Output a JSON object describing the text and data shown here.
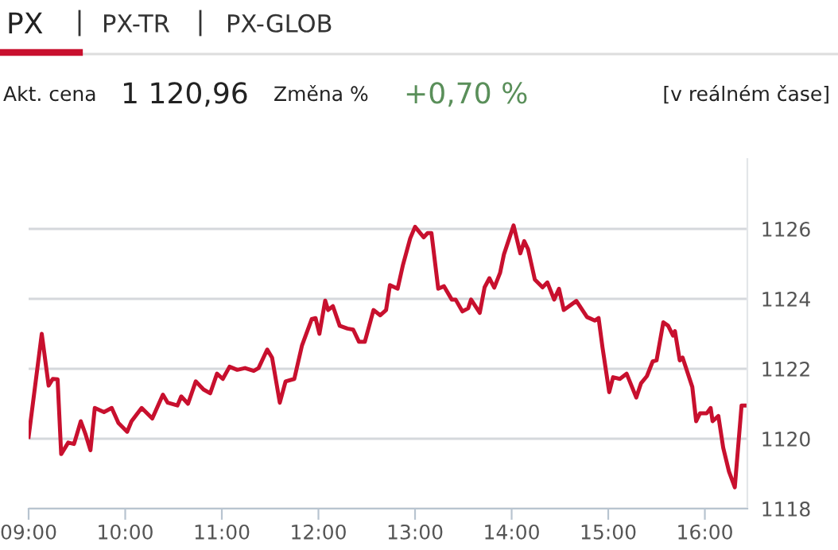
{
  "chart_data": {
    "type": "line",
    "annotations": [
      "PX",
      "PX-TR",
      "PX-GLOB",
      "Akt. cena",
      "1 120,96",
      "Změna %",
      "+0,70 %",
      "[v reálném čase]"
    ],
    "x": [
      9.0,
      9.136,
      9.207,
      9.25,
      9.3,
      9.337,
      9.41,
      9.47,
      9.54,
      9.59,
      9.64,
      9.685,
      9.78,
      9.86,
      9.93,
      10.02,
      10.065,
      10.17,
      10.28,
      10.39,
      10.44,
      10.54,
      10.58,
      10.65,
      10.73,
      10.81,
      10.88,
      10.95,
      11.01,
      11.08,
      11.16,
      11.24,
      11.33,
      11.38,
      11.47,
      11.52,
      11.6,
      11.66,
      11.75,
      11.83,
      11.93,
      11.97,
      12.01,
      12.07,
      12.1,
      12.15,
      12.22,
      12.3,
      12.36,
      12.42,
      12.48,
      12.57,
      12.64,
      12.7,
      12.74,
      12.82,
      12.875,
      12.95,
      13.0,
      13.09,
      13.13,
      13.17,
      13.24,
      13.3,
      13.38,
      13.42,
      13.49,
      13.55,
      13.58,
      13.67,
      13.72,
      13.77,
      13.82,
      13.88,
      13.92,
      14.02,
      14.09,
      14.13,
      14.17,
      14.24,
      14.32,
      14.37,
      14.44,
      14.49,
      14.54,
      14.67,
      14.78,
      14.86,
      14.9,
      14.94,
      15.01,
      15.05,
      15.12,
      15.19,
      15.29,
      15.34,
      15.4,
      15.46,
      15.5,
      15.57,
      15.62,
      15.67,
      15.69,
      15.74,
      15.77,
      15.87,
      15.91,
      15.95,
      16.02,
      16.06,
      16.08,
      16.14,
      16.19,
      16.25,
      16.31,
      16.38,
      16.44
    ],
    "series": [
      {
        "color": "#c8102e",
        "values": [
          1120.05,
          1123.0,
          1121.52,
          1121.71,
          1121.7,
          1119.56,
          1119.89,
          1119.85,
          1120.5,
          1120.12,
          1119.67,
          1120.88,
          1120.76,
          1120.88,
          1120.45,
          1120.2,
          1120.5,
          1120.88,
          1120.58,
          1121.26,
          1121.03,
          1120.95,
          1121.21,
          1121.0,
          1121.64,
          1121.41,
          1121.3,
          1121.86,
          1121.71,
          1122.06,
          1121.97,
          1122.02,
          1121.94,
          1122.02,
          1122.55,
          1122.32,
          1121.03,
          1121.64,
          1121.71,
          1122.67,
          1123.42,
          1123.45,
          1123.0,
          1123.95,
          1123.68,
          1123.79,
          1123.23,
          1123.15,
          1123.12,
          1122.77,
          1122.77,
          1123.68,
          1123.53,
          1123.68,
          1124.39,
          1124.29,
          1124.97,
          1125.73,
          1126.06,
          1125.76,
          1125.88,
          1125.88,
          1124.29,
          1124.36,
          1123.98,
          1123.98,
          1123.64,
          1123.73,
          1123.98,
          1123.6,
          1124.33,
          1124.59,
          1124.32,
          1124.74,
          1125.27,
          1126.1,
          1125.3,
          1125.65,
          1125.42,
          1124.55,
          1124.33,
          1124.47,
          1123.98,
          1124.29,
          1123.68,
          1123.94,
          1123.48,
          1123.38,
          1123.45,
          1122.62,
          1121.33,
          1121.76,
          1121.71,
          1121.86,
          1121.18,
          1121.59,
          1121.79,
          1122.21,
          1122.24,
          1123.33,
          1123.23,
          1122.95,
          1123.08,
          1122.24,
          1122.32,
          1121.48,
          1120.5,
          1120.73,
          1120.73,
          1120.88,
          1120.5,
          1120.65,
          1119.74,
          1119.06,
          1118.61,
          1120.95,
          1120.95
        ]
      }
    ],
    "xlim": [
      9,
      16.44
    ],
    "xticks": [
      {
        "value": 9,
        "label": "09:00"
      },
      {
        "value": 10,
        "label": "10:00"
      },
      {
        "value": 11,
        "label": "11:00"
      },
      {
        "value": 12,
        "label": "12:00"
      },
      {
        "value": 13,
        "label": "13:00"
      },
      {
        "value": 14,
        "label": "14:00"
      },
      {
        "value": 15,
        "label": "15:00"
      },
      {
        "value": 16,
        "label": "16:00"
      }
    ],
    "ylim": [
      1118,
      1128
    ],
    "yticks": [
      1118,
      1120,
      1122,
      1124,
      1126
    ],
    "grid": "y",
    "marker": "none",
    "line_style": "solid",
    "legend": false
  }
}
